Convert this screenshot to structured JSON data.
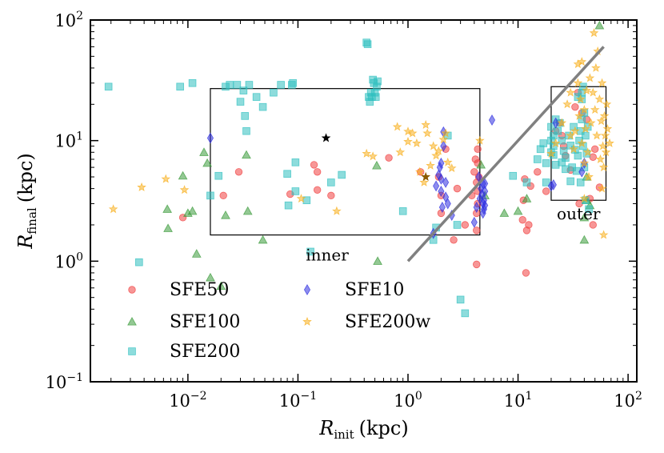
{
  "chart_data": {
    "type": "scatter",
    "title": "",
    "xlabel": {
      "main": "R",
      "sub": "init",
      "unit": "(kpc)"
    },
    "ylabel": {
      "main": "R",
      "sub": "final",
      "unit": "(kpc)"
    },
    "xscale": "log",
    "yscale": "log",
    "xlim": [
      0.0013,
      120
    ],
    "ylim": [
      0.1,
      100
    ],
    "x_ticks": [
      {
        "value": 0.01,
        "base": "10",
        "exp": "−2"
      },
      {
        "value": 0.1,
        "base": "10",
        "exp": "−1"
      },
      {
        "value": 1,
        "base": "10",
        "exp": "0"
      },
      {
        "value": 10,
        "base": "10",
        "exp": "1"
      },
      {
        "value": 100,
        "base": "10",
        "exp": "2"
      }
    ],
    "y_ticks": [
      {
        "value": 0.1,
        "base": "10",
        "exp": "−1"
      },
      {
        "value": 1,
        "base": "10",
        "exp": "0"
      },
      {
        "value": 10,
        "base": "10",
        "exp": "1"
      },
      {
        "value": 100,
        "base": "10",
        "exp": "2"
      }
    ],
    "grid": false,
    "legend_position": "lower-left",
    "colors": {
      "SFE50": "#f04040",
      "SFE100": "#3a9a3a",
      "SFE200": "#30c0c0",
      "SFE10": "#3030e0",
      "SFE200w": "#f8b020",
      "diagonal_line": "#808080",
      "box": "#000000"
    },
    "series": [
      {
        "name": "SFE50",
        "marker": "circle",
        "points": [
          [
            0.009,
            2.3
          ],
          [
            0.021,
            3.5
          ],
          [
            0.029,
            5.5
          ],
          [
            0.085,
            3.6
          ],
          [
            0.14,
            6.3
          ],
          [
            0.15,
            5.5
          ],
          [
            0.15,
            3.9
          ],
          [
            0.2,
            3.5
          ],
          [
            0.67,
            7.2
          ],
          [
            1.3,
            5.5
          ],
          [
            1.9,
            5.0
          ],
          [
            2.0,
            3.5
          ],
          [
            2.0,
            2.5
          ],
          [
            2.2,
            8.5
          ],
          [
            2.6,
            1.5
          ],
          [
            2.8,
            4.0
          ],
          [
            3.3,
            2.0
          ],
          [
            3.8,
            3.5
          ],
          [
            4.0,
            5.5
          ],
          [
            4.1,
            7.0
          ],
          [
            4.2,
            4.5
          ],
          [
            4.2,
            2.5
          ],
          [
            4.2,
            0.94
          ],
          [
            4.2,
            1.8
          ],
          [
            4.3,
            8.5
          ],
          [
            4.3,
            3.0
          ],
          [
            4.3,
            3.8
          ],
          [
            4.3,
            6.5
          ],
          [
            4.4,
            5.0
          ],
          [
            11,
            2.2
          ],
          [
            11.2,
            3.2
          ],
          [
            11.5,
            4.8
          ],
          [
            11.8,
            0.8
          ],
          [
            12,
            1.8
          ],
          [
            12.5,
            2.0
          ],
          [
            13,
            4.2
          ],
          [
            15,
            5.5
          ],
          [
            18,
            3.8
          ],
          [
            22,
            12
          ],
          [
            24,
            14
          ],
          [
            25,
            11
          ],
          [
            26,
            9
          ],
          [
            27,
            7.5
          ],
          [
            30,
            5.7
          ],
          [
            33,
            19
          ],
          [
            35,
            25
          ],
          [
            36,
            3.0
          ],
          [
            38,
            17
          ],
          [
            42,
            15
          ],
          [
            45,
            3.3
          ],
          [
            48,
            2.0
          ],
          [
            48,
            7.3
          ],
          [
            50,
            8.5
          ],
          [
            55,
            4.1
          ]
        ]
      },
      {
        "name": "SFE100",
        "marker": "triangle",
        "points": [
          [
            0.0065,
            2.7
          ],
          [
            0.0066,
            1.87
          ],
          [
            0.009,
            5.1
          ],
          [
            0.01,
            2.5
          ],
          [
            0.011,
            2.6
          ],
          [
            0.012,
            1.15
          ],
          [
            0.014,
            8.0
          ],
          [
            0.015,
            6.5
          ],
          [
            0.016,
            0.73
          ],
          [
            0.02,
            0.62
          ],
          [
            0.022,
            2.4
          ],
          [
            0.034,
            7.6
          ],
          [
            0.035,
            2.6
          ],
          [
            0.048,
            1.5
          ],
          [
            0.52,
            6.2
          ],
          [
            0.53,
            1.0
          ],
          [
            4.6,
            6.3
          ],
          [
            5.0,
            3.5
          ],
          [
            7.5,
            2.5
          ],
          [
            10,
            2.6
          ],
          [
            12,
            3.3
          ],
          [
            40,
            2.3
          ],
          [
            40,
            1.5
          ],
          [
            42,
            3.2
          ],
          [
            42,
            5.0
          ],
          [
            45,
            2.9
          ],
          [
            55,
            90
          ]
        ]
      },
      {
        "name": "SFE200",
        "marker": "square",
        "points": [
          [
            0.0019,
            28
          ],
          [
            0.0036,
            0.98
          ],
          [
            0.0085,
            28
          ],
          [
            0.011,
            30
          ],
          [
            0.016,
            3.5
          ],
          [
            0.019,
            5.1
          ],
          [
            0.022,
            28
          ],
          [
            0.024,
            29
          ],
          [
            0.028,
            29
          ],
          [
            0.03,
            21
          ],
          [
            0.032,
            26
          ],
          [
            0.033,
            16
          ],
          [
            0.034,
            12
          ],
          [
            0.036,
            29
          ],
          [
            0.042,
            23
          ],
          [
            0.048,
            19
          ],
          [
            0.06,
            25
          ],
          [
            0.07,
            29
          ],
          [
            0.08,
            5.3
          ],
          [
            0.082,
            2.9
          ],
          [
            0.088,
            29
          ],
          [
            0.09,
            30
          ],
          [
            0.095,
            6.6
          ],
          [
            0.095,
            3.8
          ],
          [
            0.12,
            3.2
          ],
          [
            0.13,
            1.2
          ],
          [
            0.2,
            4.5
          ],
          [
            0.25,
            5.2
          ],
          [
            0.42,
            65
          ],
          [
            0.43,
            63
          ],
          [
            0.44,
            23
          ],
          [
            0.45,
            21
          ],
          [
            0.46,
            25
          ],
          [
            0.47,
            23
          ],
          [
            0.48,
            32
          ],
          [
            0.49,
            30
          ],
          [
            0.5,
            25
          ],
          [
            0.51,
            23
          ],
          [
            0.52,
            28
          ],
          [
            0.53,
            31
          ],
          [
            0.9,
            2.6
          ],
          [
            1.7,
            1.5
          ],
          [
            1.8,
            1.9
          ],
          [
            2.3,
            11
          ],
          [
            2.8,
            2.0
          ],
          [
            3.0,
            0.48
          ],
          [
            3.3,
            0.37
          ],
          [
            9.0,
            5.1
          ],
          [
            12,
            4.5
          ],
          [
            15,
            7.0
          ],
          [
            16,
            8.5
          ],
          [
            17,
            9.5
          ],
          [
            18,
            4.5
          ],
          [
            18,
            6.5
          ],
          [
            20,
            8.0
          ],
          [
            20,
            10
          ],
          [
            20,
            13
          ],
          [
            21,
            11
          ],
          [
            21,
            9.0
          ],
          [
            21,
            7.6
          ],
          [
            22,
            15
          ],
          [
            22,
            6.3
          ],
          [
            23,
            12
          ],
          [
            24,
            14.0
          ],
          [
            25,
            6.6
          ],
          [
            25,
            10
          ],
          [
            26,
            8.2
          ],
          [
            27,
            5.8
          ],
          [
            27,
            7.2
          ],
          [
            29,
            11
          ],
          [
            30,
            9.1
          ],
          [
            30,
            4.6
          ],
          [
            31,
            6.0
          ],
          [
            32,
            13
          ],
          [
            33,
            8.4
          ],
          [
            34,
            5.6
          ],
          [
            35,
            7.5
          ],
          [
            35,
            23
          ],
          [
            36,
            10
          ],
          [
            37,
            4.5
          ],
          [
            37,
            12
          ],
          [
            38,
            15
          ],
          [
            38,
            22
          ],
          [
            38,
            25
          ],
          [
            39,
            9.0
          ],
          [
            39,
            28
          ],
          [
            40,
            6.0
          ],
          [
            40,
            17
          ],
          [
            41,
            11
          ],
          [
            41,
            3.2
          ],
          [
            42,
            7.8
          ],
          [
            43,
            13
          ],
          [
            44,
            2.7
          ]
        ]
      },
      {
        "name": "SFE10",
        "marker": "diamond",
        "points": [
          [
            0.016,
            10.5
          ],
          [
            1.7,
            1.7
          ],
          [
            1.8,
            4.2
          ],
          [
            1.9,
            5.2
          ],
          [
            1.95,
            6.0
          ],
          [
            2.0,
            6.5
          ],
          [
            2.0,
            4.8
          ],
          [
            2.0,
            3.8
          ],
          [
            2.05,
            2.8
          ],
          [
            2.1,
            9.0
          ],
          [
            2.1,
            11.8
          ],
          [
            2.2,
            4.5
          ],
          [
            2.2,
            3.4
          ],
          [
            2.3,
            3.0
          ],
          [
            2.5,
            2.4
          ],
          [
            4.0,
            2.1
          ],
          [
            4.2,
            2.8
          ],
          [
            4.4,
            5.0
          ],
          [
            4.5,
            3.3
          ],
          [
            4.6,
            4.0
          ],
          [
            4.7,
            3.6
          ],
          [
            4.8,
            3.0
          ],
          [
            4.8,
            2.5
          ],
          [
            4.8,
            4.4
          ],
          [
            4.9,
            3.2
          ],
          [
            4.9,
            2.7
          ],
          [
            5.0,
            3.8
          ],
          [
            5.0,
            2.9
          ],
          [
            5.0,
            4.4
          ],
          [
            5.8,
            14.8
          ],
          [
            20,
            4.2
          ],
          [
            21,
            4.3
          ],
          [
            22,
            14
          ],
          [
            38,
            5.5
          ],
          [
            40,
            6.5
          ]
        ]
      },
      {
        "name": "SFE200w",
        "marker": "star",
        "points": [
          [
            0.0021,
            2.7
          ],
          [
            0.0038,
            4.1
          ],
          [
            0.0063,
            4.8
          ],
          [
            0.0093,
            3.9
          ],
          [
            0.107,
            3.3
          ],
          [
            0.225,
            2.6
          ],
          [
            0.42,
            7.8
          ],
          [
            0.48,
            7.4
          ],
          [
            0.8,
            13
          ],
          [
            0.85,
            8.0
          ],
          [
            1.0,
            9.8
          ],
          [
            1.0,
            11.9
          ],
          [
            1.1,
            11.5
          ],
          [
            1.2,
            9.5
          ],
          [
            1.28,
            5.5
          ],
          [
            1.4,
            4.5
          ],
          [
            1.45,
            13.5
          ],
          [
            1.5,
            11.5
          ],
          [
            1.6,
            6.2
          ],
          [
            1.7,
            9.0
          ],
          [
            1.8,
            7.5
          ],
          [
            1.9,
            8.2
          ],
          [
            2.1,
            10.2
          ],
          [
            2.2,
            11.5
          ],
          [
            2.3,
            6.6
          ],
          [
            2.5,
            5.9
          ],
          [
            4.5,
            10
          ],
          [
            20,
            7.8
          ],
          [
            22,
            9.5
          ],
          [
            25,
            14
          ],
          [
            28,
            20
          ],
          [
            30,
            11
          ],
          [
            30,
            25
          ],
          [
            32,
            8.5
          ],
          [
            33,
            12
          ],
          [
            35,
            43
          ],
          [
            35,
            30
          ],
          [
            36,
            16
          ],
          [
            37,
            22
          ],
          [
            38,
            9.5
          ],
          [
            38,
            45
          ],
          [
            40,
            3.3
          ],
          [
            40,
            6.5
          ],
          [
            40,
            18
          ],
          [
            41,
            12.5
          ],
          [
            42,
            26
          ],
          [
            43,
            8.0
          ],
          [
            44,
            5.0
          ],
          [
            45,
            33
          ],
          [
            46,
            14
          ],
          [
            48,
            25
          ],
          [
            49,
            78
          ],
          [
            50,
            18
          ],
          [
            51,
            40
          ],
          [
            52,
            11
          ],
          [
            53,
            55
          ],
          [
            55,
            22
          ],
          [
            56,
            7.0
          ],
          [
            57,
            14.5
          ],
          [
            58,
            30
          ],
          [
            58,
            4.0
          ],
          [
            59,
            9.0
          ],
          [
            60,
            6.0
          ],
          [
            60,
            1.65
          ],
          [
            61,
            16
          ],
          [
            62,
            11
          ],
          [
            63,
            8.0
          ],
          [
            64,
            20
          ],
          [
            65,
            12.5
          ],
          [
            68,
            9.5
          ]
        ]
      }
    ],
    "special_points": [
      {
        "name": "inner-center",
        "x": 0.18,
        "y": 10.5,
        "color": "#000000"
      },
      {
        "name": "middle-center",
        "x": 1.45,
        "y": 5.0,
        "color": "#8b5a00"
      }
    ],
    "diagonal_line": {
      "x": [
        1,
        60
      ],
      "y": [
        1,
        60
      ]
    },
    "boxes": [
      {
        "label": "inner",
        "x_range": [
          0.016,
          4.5
        ],
        "y_range": [
          1.65,
          27
        ]
      },
      {
        "label": "outer",
        "x_range": [
          20,
          63
        ],
        "y_range": [
          3.2,
          28
        ]
      }
    ]
  }
}
